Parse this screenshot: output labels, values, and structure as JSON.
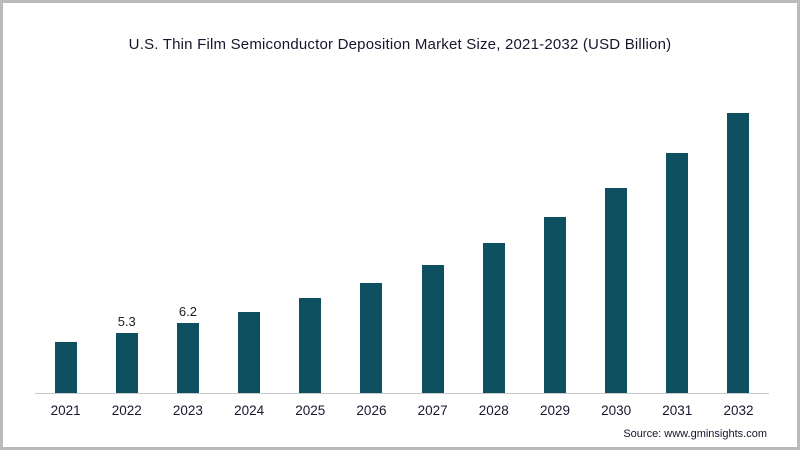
{
  "page": {
    "title": "U.S. Thin Film Semiconductor Deposition Market Size, 2021-2032 (USD Billion)",
    "source": "Source: www.gminsights.com"
  },
  "chart_data": {
    "type": "bar",
    "title": "U.S. Thin Film Semiconductor Deposition Market Size, 2021-2032 (USD Billion)",
    "categories": [
      "2021",
      "2022",
      "2023",
      "2024",
      "2025",
      "2026",
      "2027",
      "2028",
      "2029",
      "2030",
      "2031",
      "2032"
    ],
    "values": [
      4.5,
      5.3,
      6.2,
      7.2,
      8.4,
      9.8,
      11.4,
      13.3,
      15.6,
      18.2,
      21.3,
      24.9
    ],
    "labeled_points": {
      "2022": "5.3",
      "2023": "6.2"
    },
    "xlabel": "",
    "ylabel": "",
    "ylim": [
      0,
      26
    ],
    "grid": false,
    "legend": null,
    "bar_color": "#0e4f60",
    "axis_line_color": "#c6c8ca",
    "source_label": "Source: www.gminsights.com"
  }
}
